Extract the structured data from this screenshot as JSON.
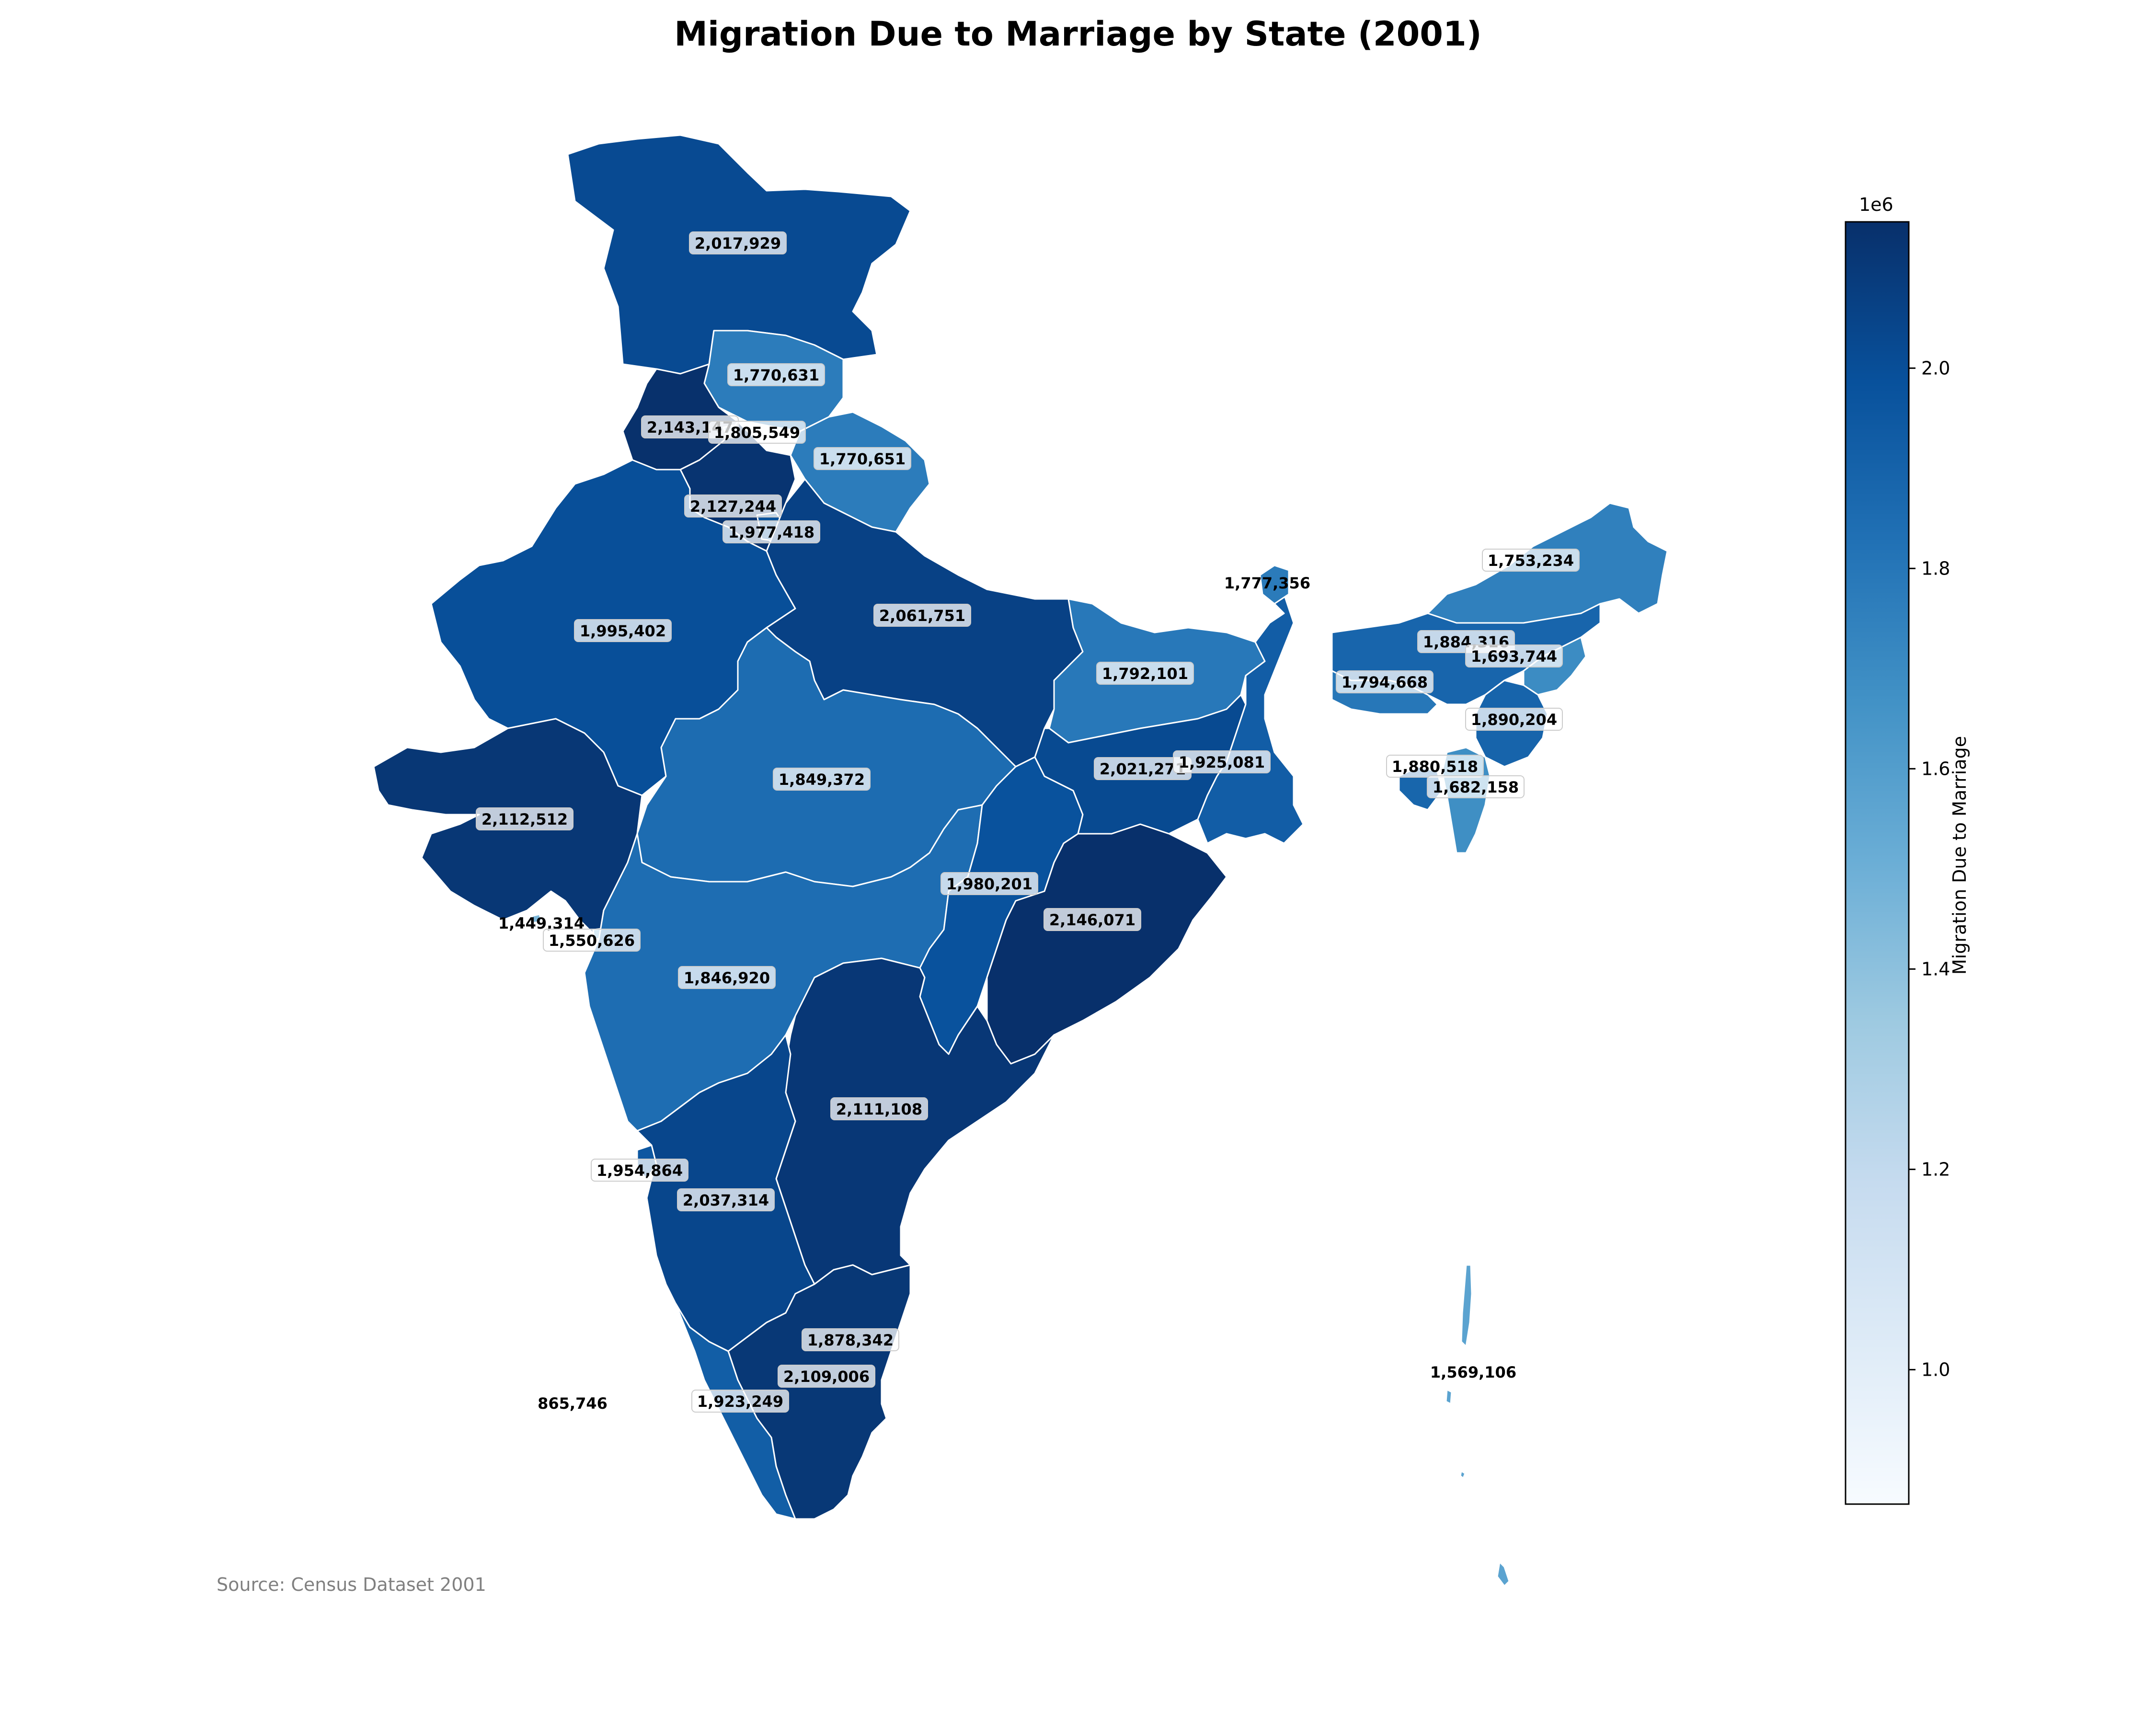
{
  "title": "Migration Due to Marriage by State (2001)",
  "source": "Source: Census Dataset 2001",
  "colorbar": {
    "label": "Migration Due to Marriage",
    "exponent": "1e6",
    "min": 865746,
    "max": 2146071,
    "ticks": [
      "1.0",
      "1.2",
      "1.4",
      "1.6",
      "1.8",
      "2.0"
    ],
    "tick_values": [
      1.0,
      1.2,
      1.4,
      1.6,
      1.8,
      2.0
    ],
    "colormap": "Blues",
    "color_low": "#f7fbff",
    "color_high": "#08306b"
  },
  "chart_data": {
    "type": "choropleth",
    "title": "Migration Due to Marriage by State (2001)",
    "value_name": "Migration Due to Marriage",
    "regions": [
      {
        "label": "2,017,929",
        "value": 2017929
      },
      {
        "label": "1,770,631",
        "value": 1770631
      },
      {
        "label": "2,143,147",
        "value": 2143147
      },
      {
        "label": "1,805,549",
        "value": 1805549
      },
      {
        "label": "1,770,651",
        "value": 1770651
      },
      {
        "label": "2,127,244",
        "value": 2127244
      },
      {
        "label": "1,977,418",
        "value": 1977418
      },
      {
        "label": "1,995,402",
        "value": 1995402
      },
      {
        "label": "2,061,751",
        "value": 2061751
      },
      {
        "label": "1,849,372",
        "value": 1849372
      },
      {
        "label": "2,112,512",
        "value": 2112512
      },
      {
        "label": "1,449,314",
        "value": 1449314
      },
      {
        "label": "1,550,626",
        "value": 1550626
      },
      {
        "label": "1,846,920",
        "value": 1846920
      },
      {
        "label": "1,980,201",
        "value": 1980201
      },
      {
        "label": "2,146,071",
        "value": 2146071
      },
      {
        "label": "1,792,101",
        "value": 1792101
      },
      {
        "label": "2,021,271",
        "value": 2021271
      },
      {
        "label": "1,925,081",
        "value": 1925081
      },
      {
        "label": "1,777,356",
        "value": 1777356
      },
      {
        "label": "1,753,234",
        "value": 1753234
      },
      {
        "label": "1,884,316",
        "value": 1884316
      },
      {
        "label": "1,693,744",
        "value": 1693744
      },
      {
        "label": "1,794,668",
        "value": 1794668
      },
      {
        "label": "1,890,204",
        "value": 1890204
      },
      {
        "label": "1,880,518",
        "value": 1880518
      },
      {
        "label": "1,682,158",
        "value": 1682158
      },
      {
        "label": "2,111,108",
        "value": 2111108
      },
      {
        "label": "1,954,864",
        "value": 1954864
      },
      {
        "label": "2,037,314",
        "value": 2037314
      },
      {
        "label": "1,878,342",
        "value": 1878342
      },
      {
        "label": "2,109,006",
        "value": 2109006
      },
      {
        "label": "1,923,249",
        "value": 1923249
      },
      {
        "label": "865,746",
        "value": 865746
      },
      {
        "label": "1,569,106",
        "value": 1569106
      }
    ]
  }
}
